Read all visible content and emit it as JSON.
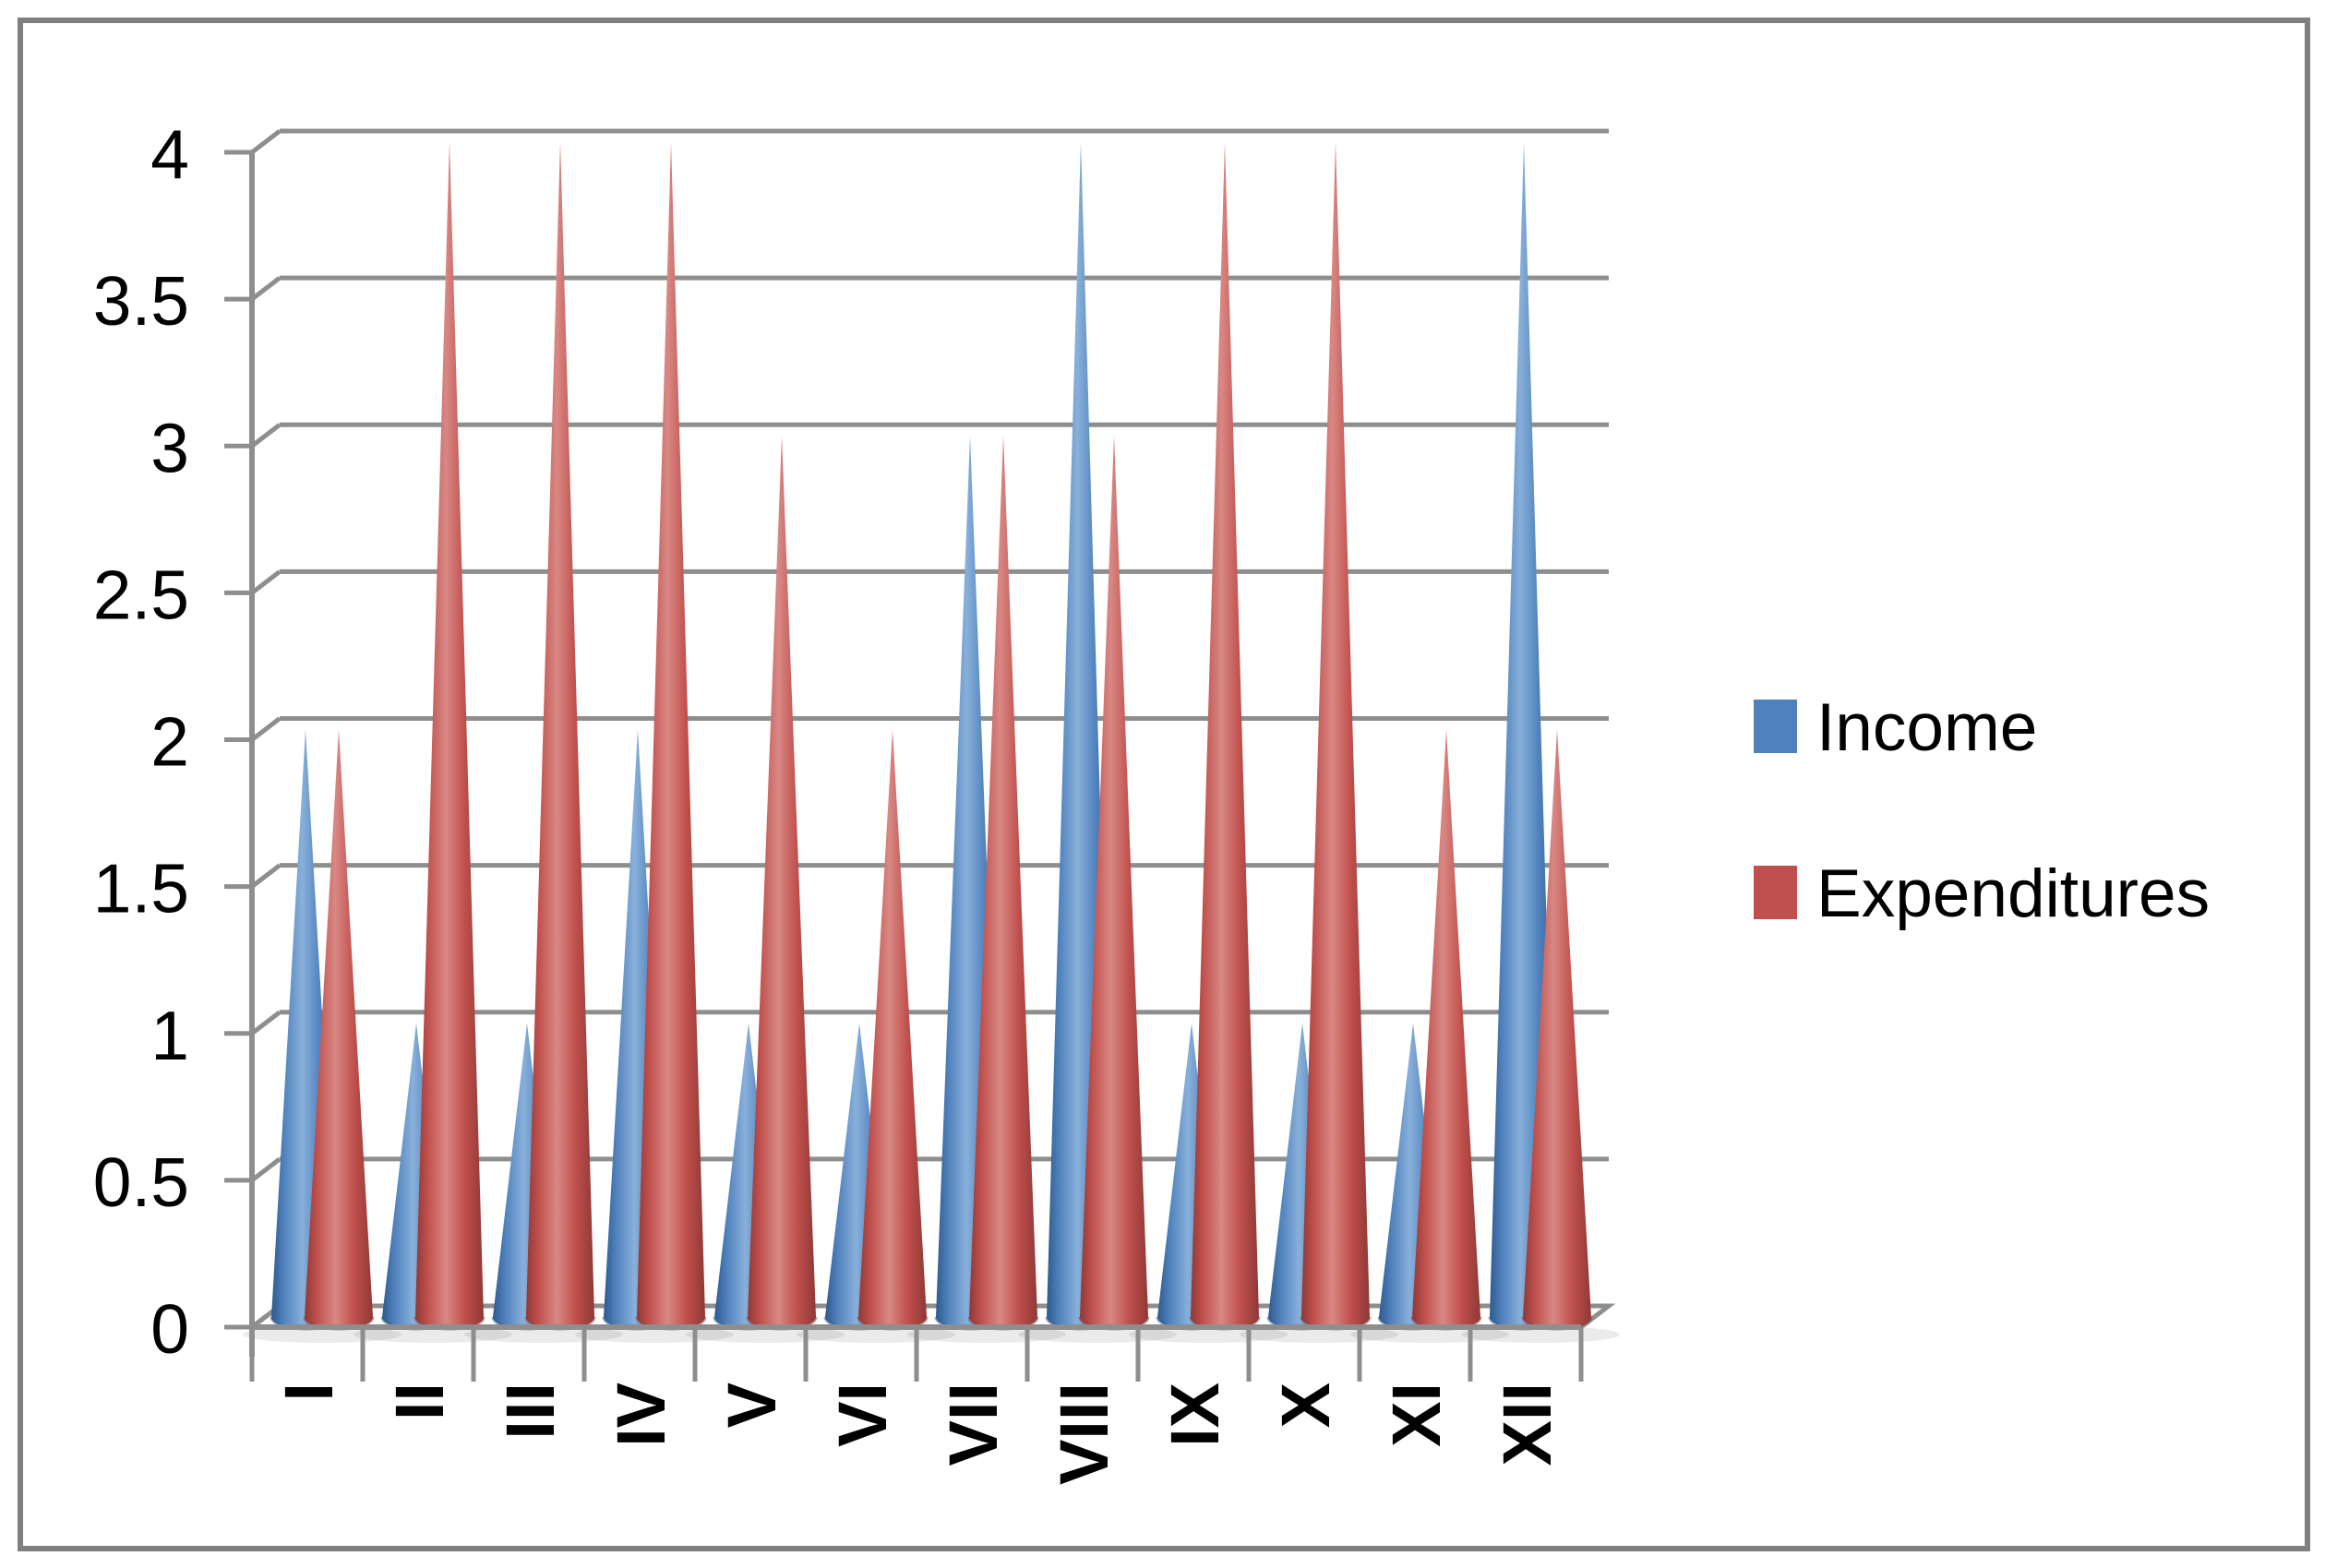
{
  "window": {
    "background": "#ffffff",
    "frame_border_color": "#808080"
  },
  "chart_data": {
    "type": "bar",
    "subtype": "3d-cone-columns",
    "title": "",
    "xlabel": "",
    "ylabel": "",
    "categories": [
      "I",
      "II",
      "III",
      "IV",
      "V",
      "VI",
      "VII",
      "VIII",
      "IX",
      "X",
      "XI",
      "XII"
    ],
    "series": [
      {
        "name": "Income",
        "color": "#4f81bd",
        "color_dark": "#2e5a8c",
        "color_light": "#88b0da",
        "values": [
          2,
          1,
          1,
          2,
          1,
          1,
          3,
          4,
          1,
          1,
          1,
          4
        ]
      },
      {
        "name": "Expenditures",
        "color": "#c0504d",
        "color_dark": "#8f3835",
        "color_light": "#d98884",
        "values": [
          2,
          4,
          4,
          4,
          3,
          2,
          3,
          3,
          4,
          4,
          2,
          2
        ]
      }
    ],
    "ylim": [
      0,
      4
    ],
    "ytick_step": 0.5,
    "yticks": [
      0,
      0.5,
      1,
      1.5,
      2,
      2.5,
      3,
      3.5,
      4
    ],
    "ytick_labels": [
      "0",
      "0.5",
      "1",
      "1.5",
      "2",
      "2.5",
      "3",
      "3.5",
      "4"
    ],
    "grid": true,
    "legend_position": "right",
    "axis_color": "#8e8e8e",
    "text_color": "#000000"
  }
}
